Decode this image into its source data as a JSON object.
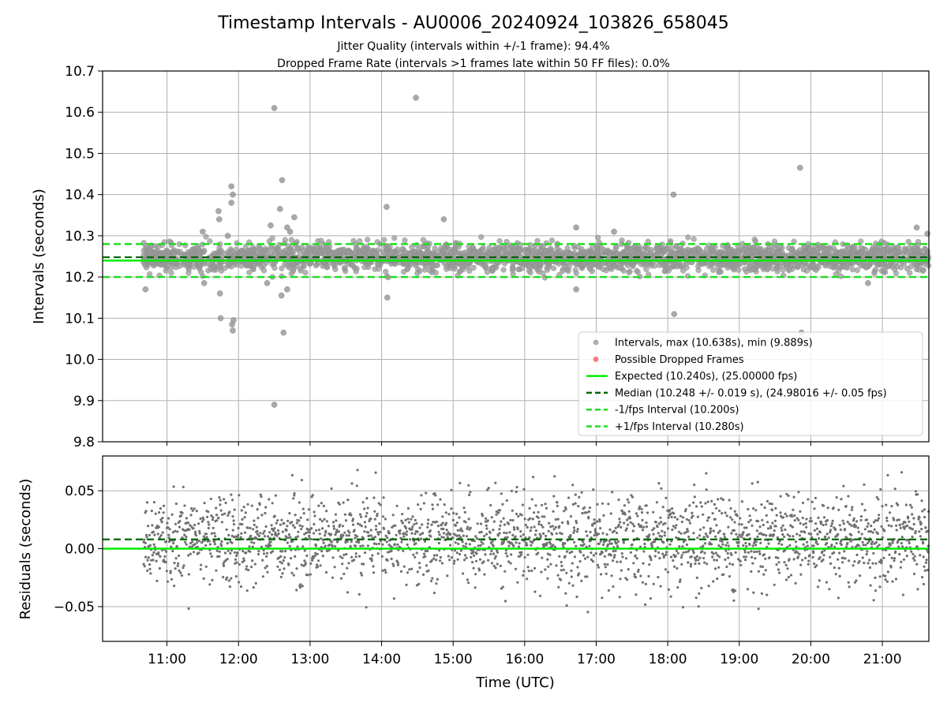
{
  "chart_data": {
    "type": "scatter",
    "title": "Timestamp Intervals - AU0006_20240924_103826_658045",
    "subtitle_lines": [
      "Jitter Quality (intervals within +/-1 frame): 94.4%",
      "Dropped Frame Rate (intervals >1 frames late within 50 FF files): 0.0%"
    ],
    "xlabel": "Time (UTC)",
    "x_tick_labels": [
      "11:00",
      "12:00",
      "13:00",
      "14:00",
      "15:00",
      "16:00",
      "17:00",
      "18:00",
      "19:00",
      "20:00",
      "21:00"
    ],
    "xlim_hours": [
      10.1,
      21.65
    ],
    "data_range_hours": [
      10.67,
      21.65
    ],
    "colors": {
      "intervals": "#808080",
      "dropped": "#ff0000",
      "expected": "#00ee00",
      "median": "#006400",
      "bounds": "#22dd22",
      "grid": "#b0b0b0"
    },
    "top_panel": {
      "ylabel": "Intervals (seconds)",
      "ylim": [
        9.8,
        10.7
      ],
      "y_ticks": [
        "9.8",
        "9.9",
        "10.0",
        "10.1",
        "10.2",
        "10.3",
        "10.4",
        "10.5",
        "10.6",
        "10.7"
      ],
      "grid": true,
      "expected": 10.24,
      "median": 10.248,
      "lower_bound": 10.2,
      "upper_bound": 10.28,
      "band_core": [
        10.215,
        10.285
      ],
      "outliers": [
        {
          "x": 10.7,
          "y": 10.17
        },
        {
          "x": 11.5,
          "y": 10.31
        },
        {
          "x": 11.52,
          "y": 10.185
        },
        {
          "x": 11.72,
          "y": 10.36
        },
        {
          "x": 11.73,
          "y": 10.34
        },
        {
          "x": 11.74,
          "y": 10.16
        },
        {
          "x": 11.75,
          "y": 10.1
        },
        {
          "x": 11.85,
          "y": 10.3
        },
        {
          "x": 11.9,
          "y": 10.42
        },
        {
          "x": 11.92,
          "y": 10.4
        },
        {
          "x": 11.9,
          "y": 10.38
        },
        {
          "x": 11.91,
          "y": 10.085
        },
        {
          "x": 11.93,
          "y": 10.095
        },
        {
          "x": 11.92,
          "y": 10.07
        },
        {
          "x": 12.45,
          "y": 10.325
        },
        {
          "x": 12.5,
          "y": 10.61
        },
        {
          "x": 12.5,
          "y": 9.89
        },
        {
          "x": 12.58,
          "y": 10.365
        },
        {
          "x": 12.61,
          "y": 10.435
        },
        {
          "x": 12.63,
          "y": 10.065
        },
        {
          "x": 12.68,
          "y": 10.32
        },
        {
          "x": 12.72,
          "y": 10.31
        },
        {
          "x": 12.78,
          "y": 10.345
        },
        {
          "x": 12.6,
          "y": 10.155
        },
        {
          "x": 12.68,
          "y": 10.17
        },
        {
          "x": 12.4,
          "y": 10.185
        },
        {
          "x": 14.07,
          "y": 10.37
        },
        {
          "x": 14.08,
          "y": 10.15
        },
        {
          "x": 14.48,
          "y": 10.635
        },
        {
          "x": 14.87,
          "y": 10.34
        },
        {
          "x": 16.72,
          "y": 10.32
        },
        {
          "x": 16.72,
          "y": 10.17
        },
        {
          "x": 17.25,
          "y": 10.31
        },
        {
          "x": 18.08,
          "y": 10.4
        },
        {
          "x": 18.09,
          "y": 10.11
        },
        {
          "x": 19.85,
          "y": 10.465
        },
        {
          "x": 19.87,
          "y": 10.065
        },
        {
          "x": 20.8,
          "y": 10.185
        },
        {
          "x": 21.48,
          "y": 10.32
        },
        {
          "x": 21.63,
          "y": 10.305
        }
      ],
      "legend": {
        "position": "lower-right",
        "entries": [
          {
            "label": "Intervals, max (10.638s), min (9.889s)",
            "marker": "point",
            "color": "#999999"
          },
          {
            "label": "Possible Dropped Frames",
            "marker": "point",
            "color": "#ff5a5a"
          },
          {
            "label": "Expected (10.240s), (25.00000 fps)",
            "marker": "line",
            "color": "#00ee00"
          },
          {
            "label": "Median (10.248 +/- 0.019 s), (24.98016 +/- 0.05 fps)",
            "marker": "dashed",
            "color": "#006400"
          },
          {
            "label": "-1/fps Interval (10.200s)",
            "marker": "dashed",
            "color": "#22dd22"
          },
          {
            "label": "+1/fps Interval (10.280s)",
            "marker": "dashed",
            "color": "#22dd22"
          }
        ]
      }
    },
    "bottom_panel": {
      "ylabel": "Residuals (seconds)",
      "ylim": [
        -0.08,
        0.08
      ],
      "y_ticks": [
        {
          "value": 0.05,
          "label": "0.05"
        },
        {
          "value": 0.0,
          "label": "0.00"
        },
        {
          "value": -0.05,
          "label": "−0.05"
        }
      ],
      "grid": true,
      "zero_line": 0.0,
      "median_offset": 0.008,
      "scatter_sd": 0.019,
      "point_count": 2400
    }
  }
}
